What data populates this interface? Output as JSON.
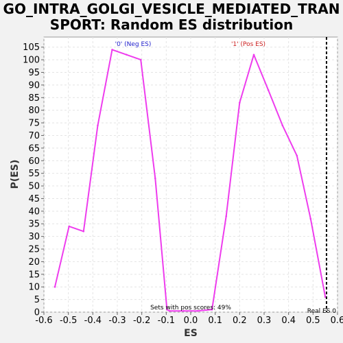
{
  "chart_data": {
    "type": "line",
    "title_line1": "GO_INTRA_GOLGI_VESICLE_MEDIATED_TRAN",
    "title_line2": "SPORT: Random ES distribution",
    "xlabel": "ES",
    "ylabel": "P(ES)",
    "xlim": [
      -0.6,
      0.6
    ],
    "ylim": [
      0,
      109
    ],
    "x_ticks": [
      -0.6,
      -0.5,
      -0.4,
      -0.3,
      -0.2,
      -0.1,
      0.0,
      0.1,
      0.2,
      0.3,
      0.4,
      0.5,
      0.6
    ],
    "x_tick_labels": [
      "-0.6",
      "-0.5",
      "-0.4",
      "-0.3",
      "-0.2",
      "-0.1",
      "0.0",
      "0.1",
      "0.2",
      "0.3",
      "0.4",
      "0.5",
      "0.6"
    ],
    "y_ticks": [
      0,
      5,
      10,
      15,
      20,
      25,
      30,
      35,
      40,
      45,
      50,
      55,
      60,
      65,
      70,
      75,
      80,
      85,
      90,
      95,
      100,
      105
    ],
    "grid": true,
    "line_color": "#ee3cee",
    "series": [
      {
        "x": [
          -0.555,
          -0.497,
          -0.438,
          -0.38,
          -0.321,
          -0.262,
          -0.204,
          -0.145,
          -0.097,
          -0.087,
          -0.03,
          0.028,
          0.087,
          0.145,
          0.2,
          0.258,
          0.317,
          0.375,
          0.434,
          0.49,
          0.55
        ],
        "y": [
          10,
          34,
          32,
          74,
          104,
          102,
          100,
          53,
          1,
          0.5,
          0.5,
          0.5,
          1,
          38,
          83,
          102,
          88,
          74,
          62,
          37,
          6
        ]
      }
    ],
    "neg_label": "'0' (Neg ES)",
    "pos_label": "'1' (Pos ES)",
    "neg_color": "#2020cc",
    "pos_color": "#cc2020",
    "annotation": "Sets with pos scores: 49%",
    "real_es": 0.555,
    "real_es_label": "Real ES 0"
  }
}
